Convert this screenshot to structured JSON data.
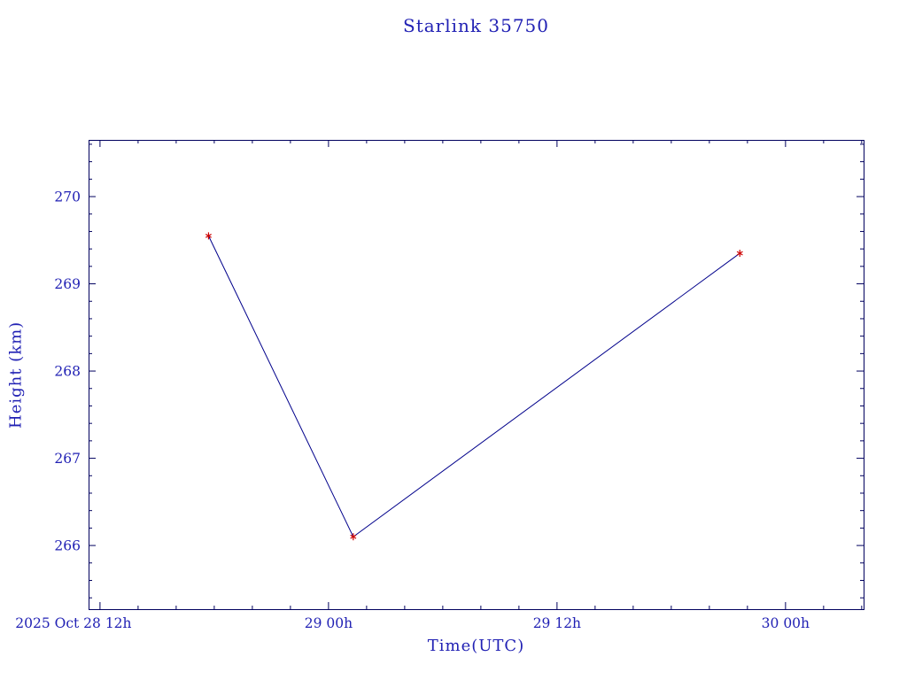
{
  "chart_data": {
    "type": "line",
    "title": "Starlink 35750",
    "xlabel": "Time(UTC)",
    "ylabel": "Height (km)",
    "series": [
      {
        "name": "height",
        "points": [
          {
            "t_hours": 17.7,
            "height_km": 269.55
          },
          {
            "t_hours": 25.3,
            "height_km": 266.1
          },
          {
            "t_hours": 45.6,
            "height_km": 269.35
          }
        ]
      }
    ],
    "x_axis": {
      "unit": "hours since 2025 Oct 28 00:00 UTC",
      "range_hours": [
        11.4,
        52.1
      ],
      "major_ticks": [
        {
          "t_hours": 12,
          "label": "2025 Oct 28  12h"
        },
        {
          "t_hours": 24,
          "label": "29 00h"
        },
        {
          "t_hours": 36,
          "label": "29 12h"
        },
        {
          "t_hours": 48,
          "label": "30 00h"
        }
      ],
      "minor_tick_every_hours": 2
    },
    "y_axis": {
      "range_km": [
        265.27,
        270.65
      ],
      "major_ticks": [
        266,
        267,
        268,
        269,
        270
      ],
      "minor_tick_every_km": 0.2
    },
    "colors": {
      "line": "#00008b",
      "marker": "#cc0000",
      "frame": "#00005e",
      "text": "#2121b4"
    },
    "grid": false,
    "legend": false
  }
}
